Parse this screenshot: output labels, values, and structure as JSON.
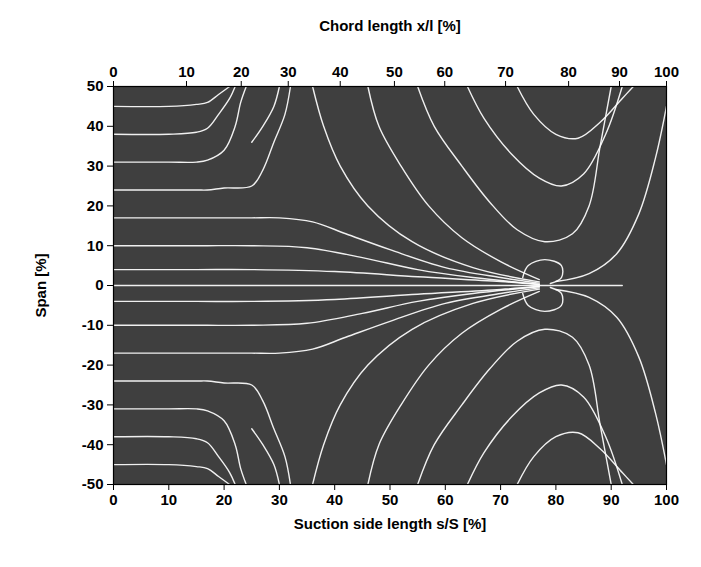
{
  "chart_data": {
    "type": "line",
    "x_label": "Suction side length s/S [%]",
    "x2_label": "Chord length x/l [%]",
    "y_label": "Span [%]",
    "xlim": [
      0,
      100
    ],
    "ylim": [
      -50,
      50
    ],
    "xticks": [
      0,
      10,
      20,
      30,
      40,
      50,
      60,
      70,
      80,
      90,
      100
    ],
    "x2ticks": [
      {
        "value": 0,
        "label": "0"
      },
      {
        "value": 13.2,
        "label": "10"
      },
      {
        "value": 23.1,
        "label": "20"
      },
      {
        "value": 31.6,
        "label": "30"
      },
      {
        "value": 41.0,
        "label": "40"
      },
      {
        "value": 50.8,
        "label": "50"
      },
      {
        "value": 59.9,
        "label": "60"
      },
      {
        "value": 70.9,
        "label": "70"
      },
      {
        "value": 82.3,
        "label": "80"
      },
      {
        "value": 91.5,
        "label": "90"
      },
      {
        "value": 100,
        "label": "100"
      }
    ],
    "yticks": [
      -50,
      -40,
      -30,
      -20,
      -10,
      0,
      10,
      20,
      30,
      40,
      50
    ],
    "grid": false,
    "color": "#ffffff",
    "lines": [
      [
        [
          0,
          45
        ],
        [
          10,
          45
        ],
        [
          15,
          45.5
        ],
        [
          17,
          46
        ],
        [
          19,
          48
        ],
        [
          21,
          50
        ]
      ],
      [
        [
          0,
          38
        ],
        [
          10,
          38
        ],
        [
          15,
          38.5
        ],
        [
          17,
          39.5
        ],
        [
          19,
          43
        ],
        [
          21,
          47
        ],
        [
          22,
          50
        ]
      ],
      [
        [
          0,
          31
        ],
        [
          10,
          31
        ],
        [
          15,
          31
        ],
        [
          17,
          31.5
        ],
        [
          20,
          34
        ],
        [
          22,
          40
        ],
        [
          23,
          46
        ],
        [
          24,
          50
        ]
      ],
      [
        [
          0,
          24
        ],
        [
          15,
          24
        ],
        [
          17,
          24
        ],
        [
          20,
          24.5
        ],
        [
          25,
          25
        ],
        [
          27,
          29
        ],
        [
          29,
          36
        ],
        [
          31,
          43
        ],
        [
          32,
          50
        ]
      ],
      [
        [
          0,
          17
        ],
        [
          15,
          17
        ],
        [
          17,
          17
        ],
        [
          20,
          17
        ],
        [
          25,
          17
        ],
        [
          30,
          17
        ],
        [
          36,
          16
        ],
        [
          42,
          13
        ],
        [
          50,
          9
        ],
        [
          60,
          4.5
        ],
        [
          70,
          2
        ],
        [
          77,
          0.6
        ]
      ],
      [
        [
          0,
          10
        ],
        [
          15,
          10
        ],
        [
          17,
          10
        ],
        [
          25,
          10
        ],
        [
          35,
          9.5
        ],
        [
          45,
          7
        ],
        [
          55,
          4
        ],
        [
          65,
          2
        ],
        [
          77,
          0.3
        ]
      ],
      [
        [
          0,
          4
        ],
        [
          15,
          4
        ],
        [
          25,
          4
        ],
        [
          40,
          3.5
        ],
        [
          55,
          2.2
        ],
        [
          70,
          1
        ],
        [
          77,
          0.2
        ]
      ],
      [
        [
          25,
          36
        ],
        [
          27,
          40
        ],
        [
          29,
          45
        ],
        [
          30,
          50
        ]
      ],
      [
        [
          36,
          50
        ],
        [
          38,
          40
        ],
        [
          41,
          30
        ],
        [
          46,
          20
        ],
        [
          54,
          11
        ],
        [
          65,
          4.5
        ],
        [
          77,
          0.9
        ]
      ],
      [
        [
          46,
          50
        ],
        [
          48,
          40
        ],
        [
          52,
          30
        ],
        [
          57,
          20
        ],
        [
          63,
          12
        ],
        [
          70,
          6
        ],
        [
          77,
          1.5
        ]
      ],
      [
        [
          55,
          50
        ],
        [
          58,
          40
        ],
        [
          63,
          30
        ],
        [
          68,
          21
        ],
        [
          73,
          14
        ],
        [
          78,
          11
        ],
        [
          83,
          13
        ],
        [
          86,
          20
        ],
        [
          88,
          35
        ],
        [
          90,
          50
        ]
      ],
      [
        [
          64,
          50
        ],
        [
          67,
          42
        ],
        [
          72,
          33
        ],
        [
          77,
          27
        ],
        [
          81,
          25
        ],
        [
          85,
          28
        ],
        [
          89,
          38
        ],
        [
          92,
          50
        ]
      ],
      [
        [
          73,
          50
        ],
        [
          76,
          43
        ],
        [
          80,
          38
        ],
        [
          84,
          37
        ],
        [
          88,
          41
        ],
        [
          92,
          47
        ],
        [
          94,
          50
        ]
      ],
      [
        [
          80,
          1
        ],
        [
          86,
          3
        ],
        [
          91,
          8
        ],
        [
          95,
          18
        ],
        [
          98,
          32
        ],
        [
          100,
          45
        ]
      ],
      [
        [
          74,
          2
        ],
        [
          75,
          5
        ],
        [
          78,
          6.5
        ],
        [
          81,
          5
        ],
        [
          81,
          2
        ],
        [
          79,
          0.5
        ]
      ],
      [
        [
          0,
          0
        ],
        [
          92,
          0
        ]
      ],
      [
        [
          0,
          -45
        ],
        [
          10,
          -45
        ],
        [
          15,
          -45.5
        ],
        [
          17,
          -46
        ],
        [
          19,
          -48
        ],
        [
          21,
          -50
        ]
      ],
      [
        [
          0,
          -38
        ],
        [
          10,
          -38
        ],
        [
          15,
          -38.5
        ],
        [
          17,
          -39.5
        ],
        [
          19,
          -43
        ],
        [
          21,
          -47
        ],
        [
          22,
          -50
        ]
      ],
      [
        [
          0,
          -31
        ],
        [
          10,
          -31
        ],
        [
          15,
          -31
        ],
        [
          17,
          -31.5
        ],
        [
          20,
          -34
        ],
        [
          22,
          -40
        ],
        [
          23,
          -46
        ],
        [
          24,
          -50
        ]
      ],
      [
        [
          0,
          -24
        ],
        [
          15,
          -24
        ],
        [
          17,
          -24
        ],
        [
          20,
          -24.5
        ],
        [
          25,
          -25
        ],
        [
          27,
          -29
        ],
        [
          29,
          -36
        ],
        [
          31,
          -43
        ],
        [
          32,
          -50
        ]
      ],
      [
        [
          0,
          -17
        ],
        [
          15,
          -17
        ],
        [
          17,
          -17
        ],
        [
          20,
          -17
        ],
        [
          25,
          -17
        ],
        [
          30,
          -17
        ],
        [
          36,
          -16
        ],
        [
          42,
          -13
        ],
        [
          50,
          -9
        ],
        [
          60,
          -4.5
        ],
        [
          70,
          -2
        ],
        [
          77,
          -0.6
        ]
      ],
      [
        [
          0,
          -10
        ],
        [
          15,
          -10
        ],
        [
          17,
          -10
        ],
        [
          25,
          -10
        ],
        [
          35,
          -9.5
        ],
        [
          45,
          -7
        ],
        [
          55,
          -4
        ],
        [
          65,
          -2
        ],
        [
          77,
          -0.3
        ]
      ],
      [
        [
          0,
          -4
        ],
        [
          15,
          -4
        ],
        [
          25,
          -4
        ],
        [
          40,
          -3.5
        ],
        [
          55,
          -2.2
        ],
        [
          70,
          -1
        ],
        [
          77,
          -0.2
        ]
      ],
      [
        [
          25,
          -36
        ],
        [
          27,
          -40
        ],
        [
          29,
          -45
        ],
        [
          30,
          -50
        ]
      ],
      [
        [
          36,
          -50
        ],
        [
          38,
          -40
        ],
        [
          41,
          -30
        ],
        [
          46,
          -20
        ],
        [
          54,
          -11
        ],
        [
          65,
          -4.5
        ],
        [
          77,
          -0.9
        ]
      ],
      [
        [
          46,
          -50
        ],
        [
          48,
          -40
        ],
        [
          52,
          -30
        ],
        [
          57,
          -20
        ],
        [
          63,
          -12
        ],
        [
          70,
          -6
        ],
        [
          77,
          -1.5
        ]
      ],
      [
        [
          55,
          -50
        ],
        [
          58,
          -40
        ],
        [
          63,
          -30
        ],
        [
          68,
          -21
        ],
        [
          73,
          -14
        ],
        [
          78,
          -11
        ],
        [
          83,
          -13
        ],
        [
          86,
          -20
        ],
        [
          88,
          -35
        ],
        [
          90,
          -50
        ]
      ],
      [
        [
          64,
          -50
        ],
        [
          67,
          -42
        ],
        [
          72,
          -33
        ],
        [
          77,
          -27
        ],
        [
          81,
          -25
        ],
        [
          85,
          -28
        ],
        [
          89,
          -38
        ],
        [
          92,
          -50
        ]
      ],
      [
        [
          73,
          -50
        ],
        [
          76,
          -43
        ],
        [
          80,
          -38
        ],
        [
          84,
          -37
        ],
        [
          88,
          -41
        ],
        [
          92,
          -47
        ],
        [
          94,
          -50
        ]
      ],
      [
        [
          80,
          -1
        ],
        [
          86,
          -3
        ],
        [
          91,
          -8
        ],
        [
          95,
          -18
        ],
        [
          98,
          -32
        ],
        [
          100,
          -45
        ]
      ],
      [
        [
          74,
          -2
        ],
        [
          75,
          -5
        ],
        [
          78,
          -6.5
        ],
        [
          81,
          -5
        ],
        [
          81,
          -2
        ],
        [
          79,
          -0.5
        ]
      ]
    ]
  }
}
